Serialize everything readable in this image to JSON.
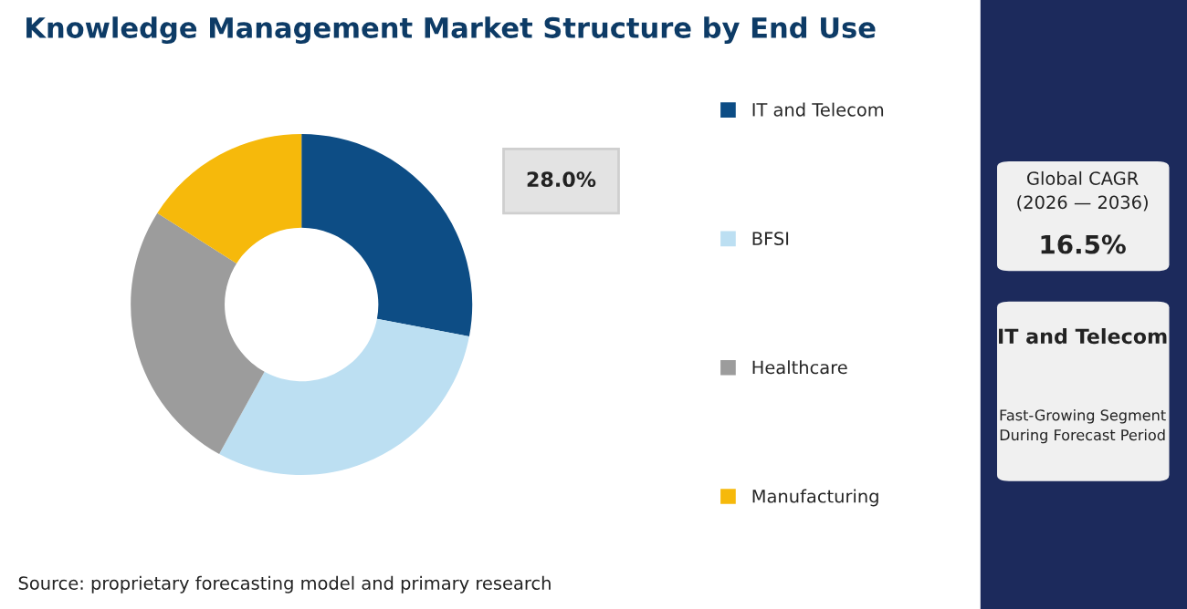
{
  "chart_data": {
    "type": "donut",
    "title": "Knowledge Management Market Structure by End Use",
    "categories": [
      "IT and Telecom",
      "BFSI",
      "Healthcare",
      "Manufacturing"
    ],
    "values": [
      28.0,
      30,
      26,
      16
    ],
    "colors": [
      "#0d4d85",
      "#bcdff2",
      "#9c9c9c",
      "#f6b90b"
    ],
    "value_labels": [
      "28.0%",
      null,
      null,
      null
    ],
    "legend": "right",
    "annotations": [
      "Source: proprietary forecasting model and primary research",
      "Global CAGR\n(2026 — 2036)",
      "16.5%",
      "IT and Telecom",
      "Fast-Growing Segment\nDuring Forecast Period"
    ]
  }
}
